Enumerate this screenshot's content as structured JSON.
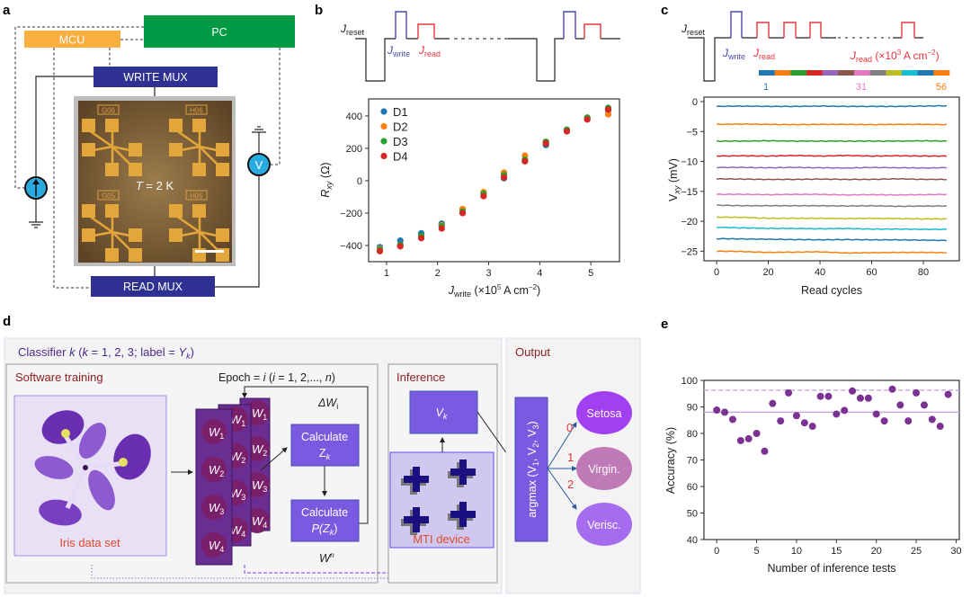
{
  "panel_labels": {
    "a": "a",
    "b": "b",
    "c": "c",
    "d": "d",
    "e": "e"
  },
  "panel_a": {
    "pc": "PC",
    "mcu": "MCU",
    "write_mux": "WRITE MUX",
    "read_mux": "READ MUX",
    "temperature_symbol": "T",
    "temperature_value": " = 2 K",
    "voltmeter": "V",
    "chip_labels": [
      "G06",
      "H06",
      "G05",
      "H05"
    ],
    "colors": {
      "pc": "#009a44",
      "mcu": "#f9ae3e",
      "mux": "#2e3192",
      "meter": "#29abe2",
      "chip": "#8a6a3e",
      "pad": "#e3a63a"
    }
  },
  "pulse_b": {
    "j": "J",
    "reset": "reset",
    "write": "write",
    "read": "read"
  },
  "pulse_c": {
    "j": "J",
    "reset": "reset",
    "write": "write",
    "read": "read",
    "unit_open": " (×10",
    "unit_exp": "3",
    "unit_mid": " A cm",
    "unit_exp2": "−2",
    "unit_close": ")",
    "colorbar_labels": [
      "1",
      "31",
      "56"
    ],
    "colorbar_colors": [
      "#1f77b4",
      "#ff7f0e",
      "#2ca02c",
      "#d62728",
      "#9467bd",
      "#8c564b",
      "#e377c2",
      "#7f7f7f",
      "#bcbd22",
      "#17becf",
      "#1f77b4",
      "#ff7f0e"
    ]
  },
  "panel_d": {
    "classifier": {
      "a": "Classifier ",
      "k1": "k",
      "b": " (",
      "k2": "k",
      "c": " = 1, 2, 3; label = ",
      "y": "Y",
      "ysub": "k",
      "d": ")"
    },
    "software_training": "Software training",
    "iris_label": "Iris data set",
    "epoch": {
      "a": "Epoch = ",
      "i1": "i",
      "b": " (",
      "i2": "i",
      "c": " = 1, 2,..., ",
      "n": "n",
      "d": ")"
    },
    "weights": [
      {
        "w": "W",
        "sub": "1"
      },
      {
        "w": "W",
        "sub": "2"
      },
      {
        "w": "W",
        "sub": "3"
      },
      {
        "w": "W",
        "sub": "4"
      }
    ],
    "delta_w": {
      "a": "ΔW",
      "sub": "i"
    },
    "calc_z": {
      "line1": "Calculate",
      "z": "Z",
      "sub": "k"
    },
    "calc_p": {
      "line1": "Calculate",
      "p": "P(Z",
      "sub": "k",
      "close": ")"
    },
    "w_n": {
      "w": "W",
      "sup": "n"
    },
    "inference": "Inference",
    "v_k": {
      "v": "V",
      "sub": "k"
    },
    "mti_device": "MTI device",
    "output": "Output",
    "argmax": {
      "a": "argmax (V",
      "s1": "1",
      "b": ", V",
      "s2": "2",
      "c": ", V",
      "s3": "3",
      "d": ")"
    },
    "class_indices": [
      "0",
      "1",
      "2"
    ],
    "classes": [
      {
        "label": "Setosa",
        "color": "#a23ff0"
      },
      {
        "label": "Virgin.",
        "color": "#c07ab8"
      },
      {
        "label": "Verisc.",
        "color": "#a56cf0"
      }
    ]
  },
  "chart_data": [
    {
      "panel": "b",
      "type": "scatter",
      "xlabel_parts": [
        "J",
        "write",
        " (×10",
        "5",
        " A cm",
        "−2",
        ")"
      ],
      "ylabel_parts": [
        "R",
        "xy",
        " (Ω)"
      ],
      "xlim": [
        0.65,
        5.56
      ],
      "ylim": [
        -500,
        505
      ],
      "xticks": [
        1,
        2,
        3,
        4,
        5
      ],
      "yticks": [
        -400,
        -200,
        0,
        200,
        400
      ],
      "grid": false,
      "legend": "top-left",
      "x": [
        0.87,
        1.27,
        1.68,
        2.08,
        2.49,
        2.9,
        3.3,
        3.71,
        4.12,
        4.53,
        4.93,
        5.34
      ],
      "series": [
        {
          "name": "D1",
          "color": "#1f77b4",
          "values": [
            -410,
            -370,
            -325,
            -265,
            -180,
            -80,
            15,
            125,
            220,
            310,
            385,
            435
          ]
        },
        {
          "name": "D2",
          "color": "#ff7f0e",
          "values": [
            -420,
            -400,
            -345,
            -275,
            -175,
            -70,
            50,
            155,
            240,
            310,
            380,
            410
          ]
        },
        {
          "name": "D3",
          "color": "#2ca02c",
          "values": [
            -425,
            -395,
            -340,
            -280,
            -190,
            -80,
            35,
            130,
            240,
            315,
            390,
            450
          ]
        },
        {
          "name": "D4",
          "color": "#d62728",
          "values": [
            -435,
            -405,
            -355,
            -295,
            -200,
            -95,
            20,
            120,
            230,
            305,
            378,
            440
          ]
        }
      ]
    },
    {
      "panel": "c",
      "type": "line",
      "xlabel": "Read cycles",
      "ylabel_parts": [
        "V",
        "xy",
        " (mV)"
      ],
      "xlim": [
        -4.9,
        93.9
      ],
      "ylim": [
        -26.6,
        0.75
      ],
      "xticks": [
        0,
        20,
        40,
        60,
        80
      ],
      "yticks": [
        0,
        -5,
        -10,
        -15,
        -20,
        -25
      ],
      "grid": false,
      "x": [
        0,
        10,
        20,
        30,
        40,
        50,
        60,
        70,
        80,
        89
      ],
      "series": [
        {
          "color": "#1f77b4",
          "values": [
            -0.8,
            -0.75,
            -0.8,
            -0.8,
            -0.75,
            -0.8,
            -0.8,
            -0.8,
            -0.75,
            -0.7
          ]
        },
        {
          "color": "#ff7f0e",
          "values": [
            -3.8,
            -3.75,
            -3.8,
            -3.85,
            -3.8,
            -3.8,
            -3.85,
            -3.8,
            -3.8,
            -3.85
          ]
        },
        {
          "color": "#2ca02c",
          "values": [
            -6.6,
            -6.6,
            -6.55,
            -6.6,
            -6.6,
            -6.6,
            -6.6,
            -6.6,
            -6.55,
            -6.6
          ]
        },
        {
          "color": "#d62728",
          "values": [
            -9.1,
            -9.05,
            -9.1,
            -9.0,
            -9.1,
            -9.0,
            -9.1,
            -9.05,
            -9.1,
            -9.1
          ]
        },
        {
          "color": "#9467bd",
          "values": [
            -11.0,
            -11.0,
            -11.05,
            -11.0,
            -11.05,
            -11.1,
            -11.0,
            -11.05,
            -11.1,
            -11.05
          ]
        },
        {
          "color": "#8c564b",
          "values": [
            -12.9,
            -12.95,
            -13.0,
            -13.0,
            -12.95,
            -13.0,
            -13.0,
            -12.9,
            -13.0,
            -13.0
          ]
        },
        {
          "color": "#e377c2",
          "values": [
            -15.5,
            -15.5,
            -15.55,
            -15.5,
            -15.5,
            -15.6,
            -15.55,
            -15.6,
            -15.55,
            -15.5
          ]
        },
        {
          "color": "#7f7f7f",
          "values": [
            -17.3,
            -17.4,
            -17.4,
            -17.4,
            -17.4,
            -17.45,
            -17.4,
            -17.5,
            -17.45,
            -17.45
          ]
        },
        {
          "color": "#bcbd22",
          "values": [
            -19.3,
            -19.35,
            -19.5,
            -19.5,
            -19.5,
            -19.55,
            -19.5,
            -19.55,
            -19.6,
            -19.6
          ]
        },
        {
          "color": "#17becf",
          "values": [
            -21.0,
            -21.1,
            -21.2,
            -21.2,
            -21.25,
            -21.2,
            -21.3,
            -21.3,
            -21.35,
            -21.35
          ]
        },
        {
          "color": "#1f77b4",
          "values": [
            -22.9,
            -22.95,
            -23.0,
            -23.05,
            -23.1,
            -23.05,
            -23.1,
            -23.1,
            -23.15,
            -23.2
          ]
        },
        {
          "color": "#ff7f0e",
          "values": [
            -25.0,
            -25.05,
            -25.2,
            -25.15,
            -25.1,
            -25.3,
            -25.25,
            -25.2,
            -25.2,
            -25.25
          ]
        }
      ]
    },
    {
      "panel": "e",
      "type": "scatter",
      "xlabel": "Number of inference tests",
      "ylabel": "Accuracy (%)",
      "xlim": [
        -1.6,
        30.4
      ],
      "ylim": [
        40,
        100
      ],
      "xticks": [
        0,
        5,
        10,
        15,
        20,
        25,
        30
      ],
      "yticks": [
        40,
        50,
        60,
        70,
        80,
        90,
        100
      ],
      "grid": false,
      "color": "#7b3294",
      "reference_lines": [
        {
          "value": 96.3,
          "style": "dashed",
          "color": "#c9a9e0"
        },
        {
          "value": 88,
          "style": "solid",
          "color": "#c9a9e0"
        }
      ],
      "x": [
        0,
        1,
        2,
        3,
        4,
        5,
        6,
        7,
        8,
        9,
        10,
        11,
        12,
        13,
        14,
        15,
        16,
        17,
        18,
        19,
        20,
        21,
        22,
        23,
        24,
        25,
        26,
        27,
        28,
        29
      ],
      "values": [
        88.8,
        88,
        85.3,
        77.3,
        78,
        80,
        73.3,
        91.3,
        84.7,
        95.3,
        86.7,
        84,
        82.7,
        94,
        94,
        87.3,
        88.7,
        96,
        93.3,
        93.3,
        87.3,
        84.7,
        96.7,
        90.7,
        84.7,
        95.3,
        90.7,
        85.3,
        82.7,
        94.7
      ]
    }
  ]
}
